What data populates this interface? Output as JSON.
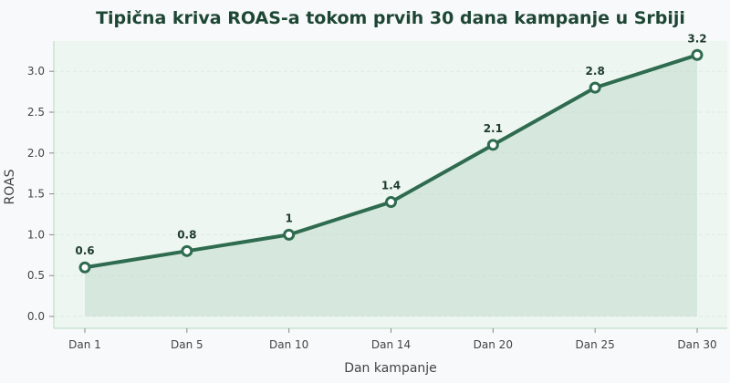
{
  "chart_data": {
    "type": "area",
    "title": "Tipična kriva ROAS-a tokom prvih 30 dana kampanje u Srbiji",
    "xlabel": "Dan kampanje",
    "ylabel": "ROAS",
    "categories": [
      "Dan 1",
      "Dan 5",
      "Dan 10",
      "Dan 14",
      "Dan 20",
      "Dan 25",
      "Dan 30"
    ],
    "series": [
      {
        "values": [
          0.6,
          0.8,
          1.0,
          1.4,
          2.1,
          2.8,
          3.2
        ]
      }
    ],
    "data_labels": [
      "0.6",
      "0.8",
      "1",
      "1.4",
      "2.1",
      "2.8",
      "3.2"
    ],
    "ylim": [
      0,
      3.2
    ],
    "yticks": [
      0.0,
      0.5,
      1.0,
      1.5,
      2.0,
      2.5,
      3.0
    ],
    "ytick_labels": [
      "0.0",
      "0.5",
      "1.0",
      "1.5",
      "2.0",
      "2.5",
      "3.0"
    ],
    "grid": true,
    "legend": false,
    "colors": {
      "line": "#2e6b4f",
      "fill": "#a8cdb7",
      "plot_bg": "#eef6f1",
      "spine": "#b5dcc2",
      "grid": "#dcebe2"
    }
  }
}
